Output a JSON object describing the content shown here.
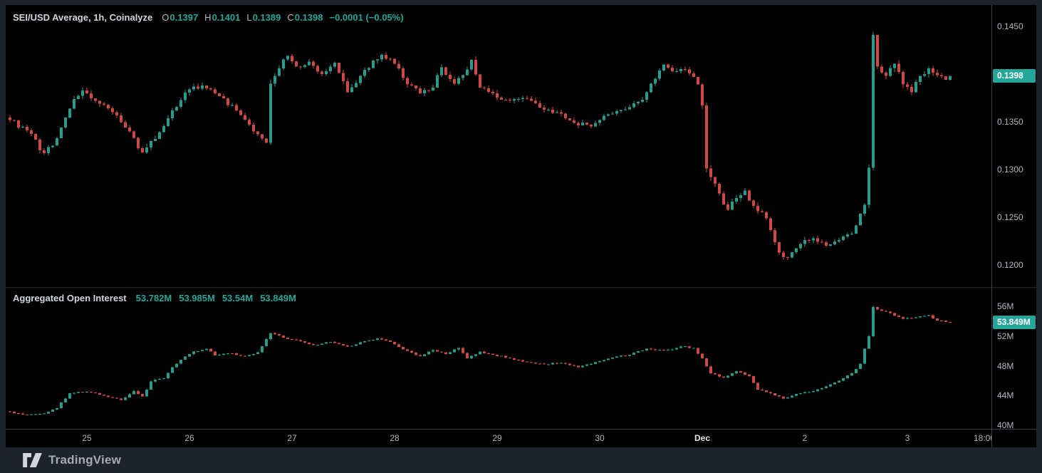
{
  "page": {
    "background": "#1e222d",
    "chart_background": "#000000"
  },
  "colors": {
    "candle_up": "#2a9a8c",
    "candle_down": "#cc4a43",
    "accent_teal": "#26a69a",
    "legend_text": "#d2d5dd",
    "axis_text": "#b2b5be",
    "border": "#3a3f4b",
    "frame": "#1e222d"
  },
  "branding": {
    "logo": "tradingview-logo",
    "name": "TradingView"
  },
  "time_axis": {
    "interval": "1h",
    "ticks": [
      {
        "label": "25",
        "index": 18
      },
      {
        "label": "26",
        "index": 42
      },
      {
        "label": "27",
        "index": 66
      },
      {
        "label": "28",
        "index": 90
      },
      {
        "label": "29",
        "index": 114
      },
      {
        "label": "30",
        "index": 138
      },
      {
        "label": "Dec",
        "index": 162,
        "emphasis": true
      },
      {
        "label": "2",
        "index": 186
      },
      {
        "label": "3",
        "index": 210
      },
      {
        "label": "18:00",
        "index": 228,
        "clipped": true
      }
    ]
  },
  "chart_data": [
    {
      "type": "candlestick",
      "pane": "price",
      "title": "SEI/USD Average, 1h, Coinalyze",
      "legend": {
        "ohlc": [
          {
            "label": "O",
            "value": "0.1397"
          },
          {
            "label": "H",
            "value": "0.1401"
          },
          {
            "label": "L",
            "value": "0.1389"
          },
          {
            "label": "C",
            "value": "0.1398"
          }
        ],
        "change": "−0.0001 (−0.05%)"
      },
      "y_axis": {
        "side": "right",
        "ticks": [
          {
            "text": "0.1450",
            "value": 0.145
          },
          {
            "text": "0.1350",
            "value": 0.135
          },
          {
            "text": "0.1300",
            "value": 0.13
          },
          {
            "text": "0.1250",
            "value": 0.125
          },
          {
            "text": "0.1200",
            "value": 0.12
          }
        ]
      },
      "ylim": [
        0.1196,
        0.1455
      ],
      "last_value_label": {
        "text": "0.1398",
        "value": 0.1398
      },
      "grid": false,
      "wick_scale": 0.0001,
      "anchors": [
        [
          0,
          0.1352,
          6
        ],
        [
          4,
          0.1341,
          6
        ],
        [
          8,
          0.1317,
          9
        ],
        [
          11,
          0.1333,
          6
        ],
        [
          15,
          0.1374,
          6
        ],
        [
          17,
          0.1383,
          7
        ],
        [
          20,
          0.1372,
          6
        ],
        [
          24,
          0.136,
          6
        ],
        [
          28,
          0.134,
          7
        ],
        [
          31,
          0.1318,
          9
        ],
        [
          34,
          0.1332,
          6
        ],
        [
          38,
          0.1362,
          6
        ],
        [
          42,
          0.1384,
          7
        ],
        [
          45,
          0.1388,
          6
        ],
        [
          49,
          0.1377,
          6
        ],
        [
          53,
          0.1362,
          6
        ],
        [
          57,
          0.134,
          7
        ],
        [
          60,
          0.1328,
          6
        ],
        [
          61,
          0.139,
          8
        ],
        [
          63,
          0.1406,
          7
        ],
        [
          65,
          0.1419,
          8
        ],
        [
          67,
          0.1408,
          6
        ],
        [
          70,
          0.1413,
          6
        ],
        [
          73,
          0.14,
          6
        ],
        [
          76,
          0.1412,
          6
        ],
        [
          79,
          0.1381,
          7
        ],
        [
          82,
          0.1398,
          6
        ],
        [
          85,
          0.1414,
          6
        ],
        [
          87,
          0.142,
          6
        ],
        [
          90,
          0.1411,
          6
        ],
        [
          93,
          0.1389,
          7
        ],
        [
          96,
          0.138,
          6
        ],
        [
          99,
          0.1386,
          6
        ],
        [
          101,
          0.1407,
          7
        ],
        [
          104,
          0.139,
          6
        ],
        [
          106,
          0.1399,
          6
        ],
        [
          108,
          0.1415,
          7
        ],
        [
          110,
          0.1386,
          7
        ],
        [
          113,
          0.138,
          6
        ],
        [
          116,
          0.1373,
          6
        ],
        [
          120,
          0.1375,
          5
        ],
        [
          124,
          0.1365,
          6
        ],
        [
          128,
          0.136,
          6
        ],
        [
          132,
          0.1349,
          6
        ],
        [
          136,
          0.1345,
          7
        ],
        [
          140,
          0.1358,
          6
        ],
        [
          144,
          0.1363,
          6
        ],
        [
          148,
          0.1373,
          6
        ],
        [
          151,
          0.1395,
          7
        ],
        [
          153,
          0.141,
          7
        ],
        [
          156,
          0.1403,
          6
        ],
        [
          158,
          0.1405,
          5
        ],
        [
          160,
          0.1397,
          5
        ],
        [
          161,
          0.1389,
          5
        ],
        [
          162,
          0.1367,
          8
        ],
        [
          163,
          0.1301,
          9
        ],
        [
          164,
          0.1292,
          8
        ],
        [
          166,
          0.1275,
          9
        ],
        [
          168,
          0.1258,
          8
        ],
        [
          170,
          0.127,
          7
        ],
        [
          172,
          0.1278,
          7
        ],
        [
          174,
          0.1262,
          7
        ],
        [
          177,
          0.1249,
          7
        ],
        [
          180,
          0.1213,
          7
        ],
        [
          182,
          0.1208,
          6
        ],
        [
          185,
          0.1222,
          6
        ],
        [
          188,
          0.1228,
          6
        ],
        [
          191,
          0.122,
          6
        ],
        [
          194,
          0.1226,
          6
        ],
        [
          197,
          0.1233,
          6
        ],
        [
          200,
          0.1263,
          7
        ],
        [
          201,
          0.1302,
          8
        ],
        [
          202,
          0.1441,
          7
        ],
        [
          203,
          0.1408,
          8
        ],
        [
          205,
          0.1398,
          7
        ],
        [
          207,
          0.1411,
          9
        ],
        [
          209,
          0.1389,
          7
        ],
        [
          211,
          0.1381,
          7
        ],
        [
          213,
          0.1398,
          6
        ],
        [
          215,
          0.1406,
          7
        ],
        [
          217,
          0.1399,
          7
        ],
        [
          219,
          0.1394,
          5
        ],
        [
          220,
          0.1398,
          4
        ]
      ]
    },
    {
      "type": "candlestick",
      "pane": "open_interest",
      "title": "Aggregated Open Interest",
      "legend_values": [
        "53.782M",
        "53.985M",
        "53.54M",
        "53.849M"
      ],
      "y_axis": {
        "side": "right",
        "ticks": [
          {
            "text": "56M",
            "value": 56
          },
          {
            "text": "52M",
            "value": 52
          },
          {
            "text": "48M",
            "value": 48
          },
          {
            "text": "44M",
            "value": 44
          },
          {
            "text": "40M",
            "value": 40
          }
        ]
      },
      "ylim": [
        40.0,
        56.6
      ],
      "last_value_label": {
        "text": "53.849M",
        "value": 53.849
      },
      "grid": false,
      "wick_scale": 0.1,
      "anchors": [
        [
          0,
          41.8,
          2
        ],
        [
          4,
          41.4,
          2
        ],
        [
          8,
          41.6,
          2
        ],
        [
          11,
          42.3,
          2
        ],
        [
          14,
          44.3,
          3
        ],
        [
          18,
          44.5,
          2
        ],
        [
          22,
          44.0,
          2
        ],
        [
          26,
          43.4,
          2
        ],
        [
          29,
          44.6,
          4
        ],
        [
          31,
          43.9,
          2
        ],
        [
          33,
          45.9,
          3
        ],
        [
          36,
          46.3,
          2
        ],
        [
          38,
          47.8,
          2
        ],
        [
          40,
          48.8,
          2
        ],
        [
          43,
          49.9,
          2
        ],
        [
          46,
          50.3,
          2
        ],
        [
          48,
          49.4,
          2
        ],
        [
          51,
          49.7,
          2
        ],
        [
          55,
          49.3,
          2
        ],
        [
          58,
          49.8,
          2
        ],
        [
          61,
          52.4,
          3
        ],
        [
          64,
          51.8,
          2
        ],
        [
          68,
          51.3,
          2
        ],
        [
          71,
          50.8,
          2
        ],
        [
          75,
          51.2,
          2
        ],
        [
          79,
          50.6,
          2
        ],
        [
          83,
          51.3,
          2
        ],
        [
          86,
          51.7,
          2
        ],
        [
          89,
          51.2,
          2
        ],
        [
          92,
          50.2,
          2
        ],
        [
          96,
          49.3,
          2
        ],
        [
          99,
          50.1,
          2
        ],
        [
          102,
          49.6,
          2
        ],
        [
          105,
          50.4,
          3
        ],
        [
          107,
          49.0,
          3
        ],
        [
          110,
          49.9,
          2
        ],
        [
          113,
          49.5,
          2
        ],
        [
          117,
          49.0,
          2
        ],
        [
          121,
          48.5,
          2
        ],
        [
          125,
          48.2,
          2
        ],
        [
          129,
          48.4,
          2
        ],
        [
          133,
          47.8,
          2
        ],
        [
          137,
          48.5,
          2
        ],
        [
          141,
          49.1,
          2
        ],
        [
          145,
          49.5,
          2
        ],
        [
          149,
          50.3,
          2
        ],
        [
          153,
          50.1,
          4
        ],
        [
          157,
          50.6,
          3
        ],
        [
          160,
          50.4,
          2
        ],
        [
          162,
          49.0,
          3
        ],
        [
          164,
          47.0,
          3
        ],
        [
          167,
          46.4,
          2
        ],
        [
          170,
          47.3,
          2
        ],
        [
          173,
          46.6,
          2
        ],
        [
          175,
          44.8,
          3
        ],
        [
          178,
          44.3,
          2
        ],
        [
          181,
          43.6,
          2
        ],
        [
          184,
          44.2,
          2
        ],
        [
          188,
          44.6,
          2
        ],
        [
          191,
          45.2,
          2
        ],
        [
          194,
          46.0,
          2
        ],
        [
          197,
          47.0,
          2
        ],
        [
          199,
          48.3,
          2
        ],
        [
          200,
          50.3,
          3
        ],
        [
          201,
          52.0,
          4
        ],
        [
          202,
          55.9,
          5
        ],
        [
          204,
          55.4,
          3
        ],
        [
          206,
          55.1,
          3
        ],
        [
          209,
          54.3,
          2
        ],
        [
          212,
          54.5,
          2
        ],
        [
          215,
          54.8,
          2
        ],
        [
          217,
          54.1,
          2
        ],
        [
          219,
          53.9,
          2
        ],
        [
          220,
          53.849,
          2
        ]
      ]
    }
  ]
}
